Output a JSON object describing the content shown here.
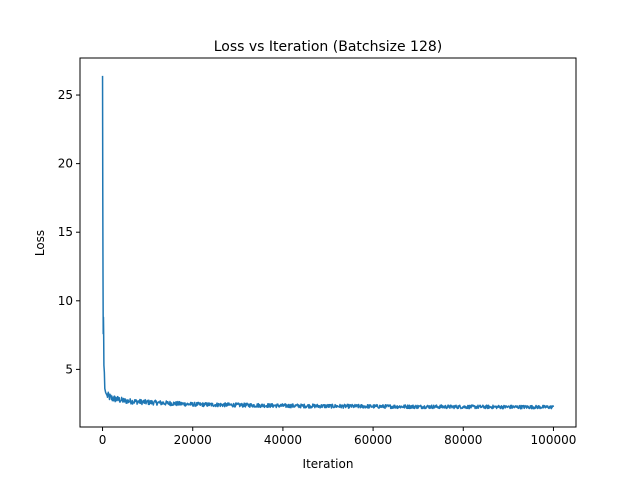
{
  "chart_data": {
    "type": "line",
    "title": "Loss vs Iteration (Batchsize 128)",
    "xlabel": "Iteration",
    "ylabel": "Loss",
    "xlim": [
      -5000,
      105000
    ],
    "ylim": [
      0.8,
      27.7
    ],
    "xticks": [
      0,
      20000,
      40000,
      60000,
      80000,
      100000
    ],
    "yticks": [
      5,
      10,
      15,
      20,
      25
    ],
    "xtick_labels": [
      "0",
      "20000",
      "40000",
      "60000",
      "80000",
      "100000"
    ],
    "ytick_labels": [
      "5",
      "10",
      "15",
      "20",
      "25"
    ],
    "grid": false,
    "legend": "none",
    "series": [
      {
        "color": "#1f77b4",
        "points": [
          [
            0,
            26.4
          ],
          [
            50,
            18.0
          ],
          [
            100,
            12.0
          ],
          [
            150,
            7.6
          ],
          [
            200,
            8.8
          ],
          [
            250,
            7.5
          ],
          [
            300,
            5.3
          ],
          [
            400,
            4.8
          ],
          [
            500,
            3.6
          ],
          [
            700,
            3.3
          ],
          [
            1000,
            3.1
          ],
          [
            2000,
            2.9
          ],
          [
            5000,
            2.7
          ],
          [
            10000,
            2.6
          ],
          [
            20000,
            2.45
          ],
          [
            30000,
            2.4
          ],
          [
            40000,
            2.35
          ],
          [
            50000,
            2.32
          ],
          [
            60000,
            2.3
          ],
          [
            70000,
            2.28
          ],
          [
            80000,
            2.27
          ],
          [
            90000,
            2.26
          ],
          [
            100000,
            2.25
          ]
        ],
        "noise_band": [
          [
            1000,
            0.6
          ],
          [
            5000,
            0.4
          ],
          [
            20000,
            0.3
          ],
          [
            100000,
            0.25
          ]
        ]
      }
    ]
  }
}
